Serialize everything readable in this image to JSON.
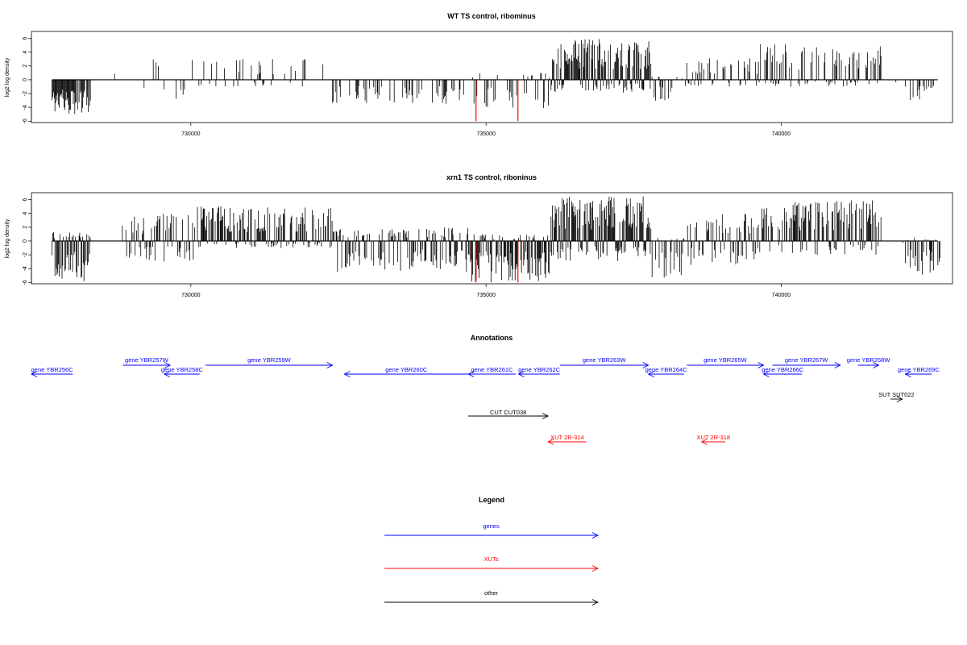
{
  "chart_data": [
    {
      "type": "bar",
      "title": "WT TS control, ribominus",
      "ylabel": "log2 log density",
      "xlabel": "",
      "xlim": [
        727300,
        742900
      ],
      "ylim": [
        -6.2,
        7.0
      ],
      "yticks": [
        "6",
        "4",
        "2",
        "0",
        "-2",
        "-4",
        "-6"
      ],
      "xticks": [
        "730000",
        "735000",
        "740000"
      ],
      "highlight_color": "#ff0000",
      "highlight_x": [
        734830,
        735540
      ],
      "highlight_values": [
        -6.0,
        -6.0
      ],
      "seed": 17,
      "profile": [
        {
          "from": 727650,
          "to": 728300,
          "pos": 0.0,
          "neg": 5.0,
          "dens": 0.85
        },
        {
          "from": 728300,
          "to": 729100,
          "pos": 1.6,
          "neg": 0.0,
          "dens": 0.02
        },
        {
          "from": 729100,
          "to": 730100,
          "pos": 3.0,
          "neg": 2.8,
          "dens": 0.12
        },
        {
          "from": 730100,
          "to": 732400,
          "pos": 3.0,
          "neg": 1.0,
          "dens": 0.18
        },
        {
          "from": 732400,
          "to": 734700,
          "pos": 0.0,
          "neg": 3.5,
          "dens": 0.25
        },
        {
          "from": 734700,
          "to": 736100,
          "pos": 1.0,
          "neg": 4.5,
          "dens": 0.35
        },
        {
          "from": 736100,
          "to": 737800,
          "pos": 6.0,
          "neg": 2.0,
          "dens": 0.9
        },
        {
          "from": 737800,
          "to": 738400,
          "pos": 0.5,
          "neg": 3.5,
          "dens": 0.3
        },
        {
          "from": 738400,
          "to": 739600,
          "pos": 3.3,
          "neg": 1.0,
          "dens": 0.35
        },
        {
          "from": 739600,
          "to": 741700,
          "pos": 5.2,
          "neg": 1.0,
          "dens": 0.5
        },
        {
          "from": 741700,
          "to": 742100,
          "pos": 0.2,
          "neg": 0.5,
          "dens": 0.05
        },
        {
          "from": 742100,
          "to": 742600,
          "pos": 0.0,
          "neg": 3.2,
          "dens": 0.45
        }
      ]
    },
    {
      "type": "bar",
      "title": "xrn1 TS control, riboninus",
      "ylabel": "log2 log density",
      "xlabel": "",
      "xlim": [
        727300,
        742900
      ],
      "ylim": [
        -6.2,
        7.0
      ],
      "yticks": [
        "6",
        "4",
        "2",
        "0",
        "-2",
        "-4",
        "-6"
      ],
      "xticks": [
        "730000",
        "735000",
        "740000"
      ],
      "highlight_color": "#ff0000",
      "highlight_x": [
        734830,
        735540
      ],
      "highlight_values": [
        -6.0,
        -6.0
      ],
      "seed": 91,
      "profile": [
        {
          "from": 727650,
          "to": 728300,
          "pos": 1.5,
          "neg": 6.0,
          "dens": 0.9
        },
        {
          "from": 728300,
          "to": 728900,
          "pos": 2.5,
          "neg": 0.3,
          "dens": 0.05
        },
        {
          "from": 728900,
          "to": 730100,
          "pos": 4.0,
          "neg": 3.0,
          "dens": 0.5
        },
        {
          "from": 730100,
          "to": 732400,
          "pos": 5.0,
          "neg": 1.0,
          "dens": 0.7
        },
        {
          "from": 732400,
          "to": 734700,
          "pos": 2.0,
          "neg": 4.5,
          "dens": 0.6
        },
        {
          "from": 734700,
          "to": 736100,
          "pos": 1.0,
          "neg": 6.0,
          "dens": 0.8
        },
        {
          "from": 736100,
          "to": 737800,
          "pos": 6.5,
          "neg": 3.0,
          "dens": 0.95
        },
        {
          "from": 737800,
          "to": 738400,
          "pos": 0.5,
          "neg": 5.5,
          "dens": 0.4
        },
        {
          "from": 738400,
          "to": 739600,
          "pos": 4.0,
          "neg": 3.5,
          "dens": 0.6
        },
        {
          "from": 739600,
          "to": 741700,
          "pos": 6.0,
          "neg": 2.0,
          "dens": 0.7
        },
        {
          "from": 741700,
          "to": 742100,
          "pos": 0.2,
          "neg": 0.5,
          "dens": 0.05
        },
        {
          "from": 742100,
          "to": 742700,
          "pos": 0.5,
          "neg": 5.0,
          "dens": 0.6
        }
      ]
    },
    {
      "type": "diagram",
      "title": "Annotations",
      "colors": {
        "gene": "#0000ff",
        "xut": "#ff0000",
        "other": "#000000"
      },
      "features": [
        {
          "label": "gene YBR256C",
          "start": 727300,
          "end": 728000,
          "strand": "-",
          "kind": "gene",
          "row": 1
        },
        {
          "label": "gene YBR257W",
          "start": 728850,
          "end": 729650,
          "strand": "+",
          "kind": "gene",
          "row": 0
        },
        {
          "label": "gene YBR258C",
          "start": 729550,
          "end": 730150,
          "strand": "-",
          "kind": "gene",
          "row": 1
        },
        {
          "label": "gene YBR259W",
          "start": 730250,
          "end": 732400,
          "strand": "+",
          "kind": "gene",
          "row": 0
        },
        {
          "label": "gene YBR260C",
          "start": 732600,
          "end": 734700,
          "strand": "-",
          "kind": "gene",
          "row": 1
        },
        {
          "label": "gene YBR261C",
          "start": 734700,
          "end": 735500,
          "strand": "-",
          "kind": "gene",
          "row": 1
        },
        {
          "label": "gene YBR262C",
          "start": 735550,
          "end": 736250,
          "strand": "-",
          "kind": "gene",
          "row": 1
        },
        {
          "label": "gene YBR263W",
          "start": 736250,
          "end": 737750,
          "strand": "+",
          "kind": "gene",
          "row": 0
        },
        {
          "label": "gene YBR264C",
          "start": 737750,
          "end": 738350,
          "strand": "-",
          "kind": "gene",
          "row": 1
        },
        {
          "label": "gene YBR265W",
          "start": 738400,
          "end": 739700,
          "strand": "+",
          "kind": "gene",
          "row": 0
        },
        {
          "label": "gene YBR266C",
          "start": 739700,
          "end": 740350,
          "strand": "-",
          "kind": "gene",
          "row": 1
        },
        {
          "label": "gene YBR267W",
          "start": 739850,
          "end": 741000,
          "strand": "+",
          "kind": "gene",
          "row": 0
        },
        {
          "label": "gene YBR268W",
          "start": 741300,
          "end": 741650,
          "strand": "+",
          "kind": "gene",
          "row": 0
        },
        {
          "label": "gene YBR269C",
          "start": 742100,
          "end": 742550,
          "strand": "-",
          "kind": "gene",
          "row": 1
        },
        {
          "label": "SUT SUT022",
          "start": 741850,
          "end": 742050,
          "strand": "+",
          "kind": "other",
          "row": 2
        },
        {
          "label": "CUT CUT038",
          "start": 734700,
          "end": 736050,
          "strand": "+",
          "kind": "other",
          "row": 3
        },
        {
          "label": "XUT 2R-314",
          "start": 736050,
          "end": 736700,
          "strand": "-",
          "kind": "xut",
          "row": 4
        },
        {
          "label": "XUT 2R-318",
          "start": 738650,
          "end": 739050,
          "strand": "-",
          "kind": "xut",
          "row": 4
        }
      ]
    },
    {
      "type": "legend",
      "title": "Legend",
      "items": [
        {
          "label": "genes",
          "color": "#0000ff"
        },
        {
          "label": "XUTs",
          "color": "#ff0000"
        },
        {
          "label": "other",
          "color": "#000000"
        }
      ]
    }
  ]
}
